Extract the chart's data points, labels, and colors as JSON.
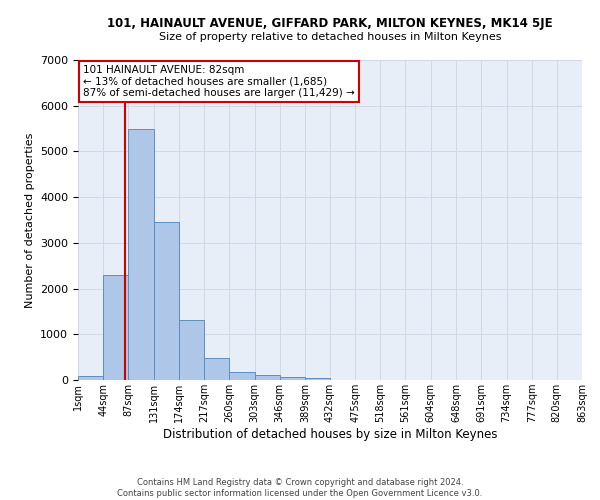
{
  "title": "101, HAINAULT AVENUE, GIFFARD PARK, MILTON KEYNES, MK14 5JE",
  "subtitle": "Size of property relative to detached houses in Milton Keynes",
  "xlabel": "Distribution of detached houses by size in Milton Keynes",
  "ylabel": "Number of detached properties",
  "footer_line1": "Contains HM Land Registry data © Crown copyright and database right 2024.",
  "footer_line2": "Contains public sector information licensed under the Open Government Licence v3.0.",
  "annotation_line1": "101 HAINAULT AVENUE: 82sqm",
  "annotation_line2": "← 13% of detached houses are smaller (1,685)",
  "annotation_line3": "87% of semi-detached houses are larger (11,429) →",
  "bar_color": "#aec6e8",
  "bar_edge_color": "#5a8fc2",
  "grid_color": "#d0d8e8",
  "background_color": "#e8eef8",
  "redline_color": "#cc0000",
  "annotation_box_color": "#ffffff",
  "annotation_box_edge": "#cc0000",
  "bin_edges": [
    1,
    44,
    87,
    131,
    174,
    217,
    260,
    303,
    346,
    389,
    432,
    475,
    518,
    561,
    604,
    648,
    691,
    734,
    777,
    820,
    863
  ],
  "bin_labels": [
    "1sqm",
    "44sqm",
    "87sqm",
    "131sqm",
    "174sqm",
    "217sqm",
    "260sqm",
    "303sqm",
    "346sqm",
    "389sqm",
    "432sqm",
    "475sqm",
    "518sqm",
    "561sqm",
    "604sqm",
    "648sqm",
    "691sqm",
    "734sqm",
    "777sqm",
    "820sqm",
    "863sqm"
  ],
  "bar_heights": [
    90,
    2300,
    5480,
    3450,
    1320,
    480,
    175,
    110,
    70,
    45,
    0,
    0,
    0,
    0,
    0,
    0,
    0,
    0,
    0,
    0
  ],
  "redline_x": 82,
  "ylim": [
    0,
    7000
  ],
  "yticks": [
    0,
    1000,
    2000,
    3000,
    4000,
    5000,
    6000,
    7000
  ]
}
